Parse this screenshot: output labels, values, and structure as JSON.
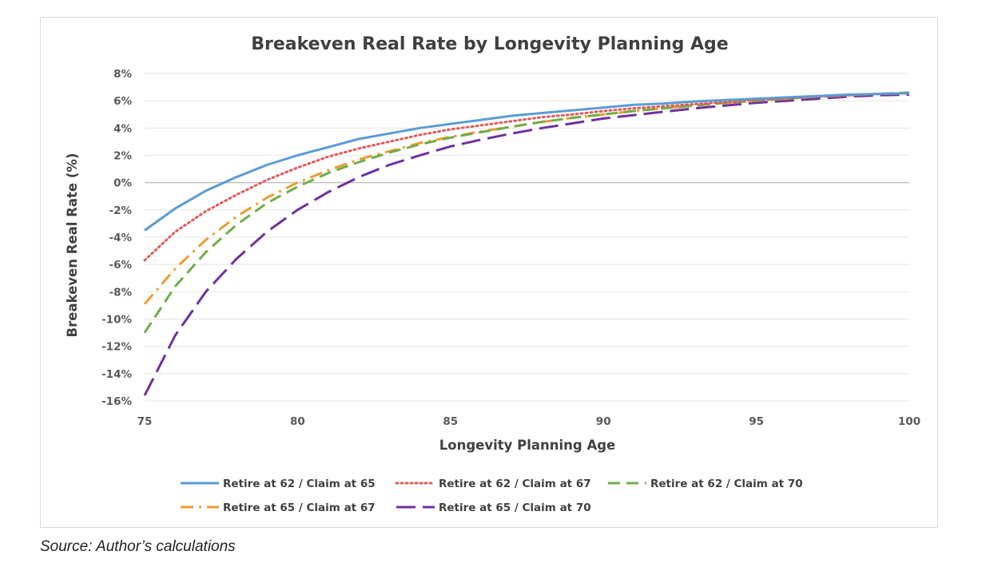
{
  "source_note": "Source: Author’s calculations",
  "chart_data": {
    "type": "line",
    "title": "Breakeven Real Rate by Longevity Planning Age",
    "xlabel": "Longevity Planning Age",
    "ylabel": "Breakeven Real Rate (%)",
    "xlim": [
      75,
      100
    ],
    "ylim": [
      -16,
      8
    ],
    "x_ticks": [
      75,
      80,
      85,
      90,
      95,
      100
    ],
    "y_ticks": [
      8,
      6,
      4,
      2,
      0,
      -2,
      -4,
      -6,
      -8,
      -10,
      -12,
      -14,
      -16
    ],
    "y_tick_labels": [
      "8%",
      "6%",
      "4%",
      "2%",
      "0%",
      "-2%",
      "-4%",
      "-6%",
      "-8%",
      "-10%",
      "-12%",
      "-14%",
      "-16%"
    ],
    "grid": "horizontal",
    "legend_position": "bottom",
    "x": [
      75,
      76,
      77,
      78,
      79,
      80,
      81,
      82,
      83,
      84,
      85,
      86,
      87,
      88,
      89,
      90,
      91,
      92,
      93,
      94,
      95,
      96,
      97,
      98,
      99,
      100
    ],
    "series": [
      {
        "name": "Retire at 62 / Claim at 65",
        "color": "#5b9bd5",
        "dash": "solid",
        "values": [
          -3.5,
          -1.9,
          -0.6,
          0.4,
          1.3,
          2.0,
          2.6,
          3.2,
          3.6,
          4.0,
          4.3,
          4.6,
          4.9,
          5.1,
          5.3,
          5.5,
          5.7,
          5.8,
          5.95,
          6.05,
          6.15,
          6.25,
          6.35,
          6.45,
          6.5,
          6.55
        ]
      },
      {
        "name": "Retire at 62 / Claim at 67",
        "color": "#e05a5a",
        "dash": "dot",
        "values": [
          -5.7,
          -3.6,
          -2.1,
          -0.9,
          0.2,
          1.1,
          1.9,
          2.5,
          3.0,
          3.5,
          3.9,
          4.2,
          4.5,
          4.8,
          5.0,
          5.25,
          5.45,
          5.6,
          5.75,
          5.9,
          6.05,
          6.2,
          6.3,
          6.4,
          6.5,
          6.55
        ]
      },
      {
        "name": "Retire at 62 / Claim at 70",
        "color": "#70ad47",
        "dash": "dash",
        "values": [
          -11.0,
          -7.6,
          -5.1,
          -3.1,
          -1.5,
          -0.3,
          0.7,
          1.5,
          2.2,
          2.8,
          3.3,
          3.7,
          4.1,
          4.45,
          4.75,
          5.0,
          5.25,
          5.45,
          5.65,
          5.85,
          6.0,
          6.15,
          6.3,
          6.4,
          6.5,
          6.6
        ]
      },
      {
        "name": "Retire at 65 / Claim at 67",
        "color": "#ed9b33",
        "dash": "dashdot",
        "values": [
          -8.9,
          -6.3,
          -4.2,
          -2.5,
          -1.1,
          0.0,
          0.9,
          1.7,
          2.3,
          2.9,
          3.35,
          3.75,
          4.1,
          4.45,
          4.75,
          5.0,
          5.25,
          5.45,
          5.65,
          5.85,
          6.0,
          6.15,
          6.3,
          6.4,
          6.5,
          6.6
        ]
      },
      {
        "name": "Retire at 65 / Claim at 70",
        "color": "#7030a0",
        "dash": "longdash",
        "values": [
          -15.6,
          -11.2,
          -8.0,
          -5.6,
          -3.6,
          -2.0,
          -0.7,
          0.4,
          1.3,
          2.0,
          2.65,
          3.15,
          3.6,
          4.0,
          4.35,
          4.7,
          4.95,
          5.2,
          5.45,
          5.65,
          5.85,
          6.0,
          6.15,
          6.3,
          6.4,
          6.45
        ]
      }
    ],
    "legend_rows": [
      [
        0,
        1,
        2
      ],
      [
        3,
        4
      ]
    ]
  }
}
